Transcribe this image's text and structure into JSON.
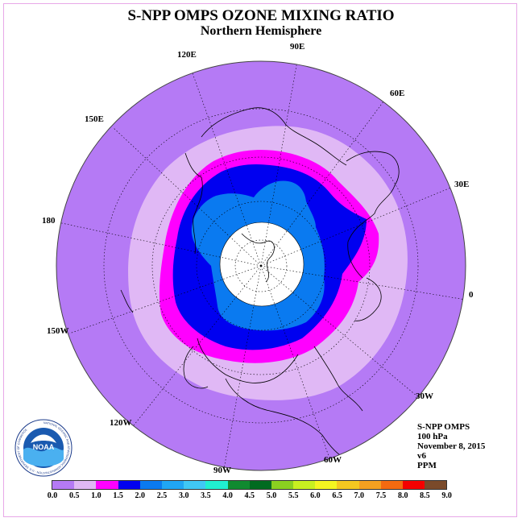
{
  "title": "S-NPP OMPS OZONE MIXING RATIO",
  "subtitle": "Northern Hemisphere",
  "lon_labels": [
    "90E",
    "60E",
    "30E",
    "0",
    "30W",
    "60W",
    "90W",
    "120W",
    "150W",
    "180",
    "150E",
    "120E"
  ],
  "info": [
    "S-NPP OMPS",
    "100 hPa",
    "November 8, 2015",
    "v6",
    "PPM"
  ],
  "colorbar": {
    "ticks": [
      "0.0",
      "0.5",
      "1.0",
      "1.5",
      "2.0",
      "2.5",
      "3.0",
      "3.5",
      "4.0",
      "4.5",
      "5.0",
      "5.5",
      "6.0",
      "6.5",
      "7.0",
      "7.5",
      "8.0",
      "8.5",
      "9.0"
    ],
    "colors": [
      "#b57af5",
      "#e0b8f5",
      "#ff00ff",
      "#ff00e6",
      "#0000f0",
      "#0a7af0",
      "#20a6f5",
      "#40c8f5",
      "#20f0d0",
      "#108a30",
      "#006b20",
      "#8ad020",
      "#c8f020",
      "#f5f520",
      "#f5c820",
      "#f5a020",
      "#f56a10",
      "#f50000",
      "#7a4a2a"
    ]
  },
  "logo_text": "NOAA",
  "logo_ring": "NATIONAL OCEANIC AND ATMOSPHERIC ADMINISTRATION · U.S. DEPARTMENT OF COMMERCE",
  "colors": {
    "background_field": "#b57af5",
    "level_05": "#e0b8f5",
    "level_10": "#ff00ff",
    "level_15": "#0000f0",
    "level_20": "#0a7af0",
    "polar_night": "#ffffff"
  }
}
